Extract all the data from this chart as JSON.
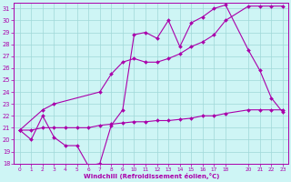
{
  "xlabel": "Windchill (Refroidissement éolien,°C)",
  "background_color": "#cef5f5",
  "grid_color": "#a0d8d8",
  "line_color": "#aa00aa",
  "xlim": [
    -0.5,
    23.5
  ],
  "ylim": [
    18,
    31.5
  ],
  "yticks": [
    18,
    19,
    20,
    21,
    22,
    23,
    24,
    25,
    26,
    27,
    28,
    29,
    30,
    31
  ],
  "xticks": [
    0,
    1,
    2,
    3,
    4,
    5,
    6,
    7,
    8,
    9,
    10,
    11,
    12,
    13,
    14,
    15,
    16,
    17,
    18,
    20,
    21,
    22,
    23
  ],
  "line1_x": [
    0,
    1,
    2,
    3,
    4,
    5,
    6,
    7,
    8,
    9,
    10,
    11,
    12,
    13,
    14,
    15,
    16,
    17,
    18,
    20,
    21,
    22,
    23
  ],
  "line1_y": [
    20.8,
    20.0,
    22.0,
    20.2,
    19.5,
    19.5,
    17.8,
    18.0,
    21.2,
    22.5,
    28.8,
    29.0,
    28.5,
    30.0,
    27.8,
    29.8,
    30.3,
    31.0,
    31.3,
    27.5,
    25.8,
    23.5,
    22.3
  ],
  "line2_x": [
    0,
    2,
    3,
    7,
    8,
    9,
    10,
    11,
    12,
    13,
    14,
    15,
    16,
    17,
    18,
    20,
    21,
    22,
    23
  ],
  "line2_y": [
    20.8,
    22.5,
    23.0,
    24.0,
    25.5,
    26.5,
    26.8,
    26.5,
    26.5,
    26.8,
    27.2,
    27.8,
    28.2,
    28.8,
    30.0,
    31.2,
    31.2,
    31.2,
    31.2
  ],
  "line3_x": [
    0,
    1,
    2,
    3,
    4,
    5,
    6,
    7,
    8,
    9,
    10,
    11,
    12,
    13,
    14,
    15,
    16,
    17,
    18,
    20,
    21,
    22,
    23
  ],
  "line3_y": [
    20.8,
    20.8,
    21.0,
    21.0,
    21.0,
    21.0,
    21.0,
    21.2,
    21.3,
    21.4,
    21.5,
    21.5,
    21.6,
    21.6,
    21.7,
    21.8,
    22.0,
    22.0,
    22.2,
    22.5,
    22.5,
    22.5,
    22.5
  ]
}
